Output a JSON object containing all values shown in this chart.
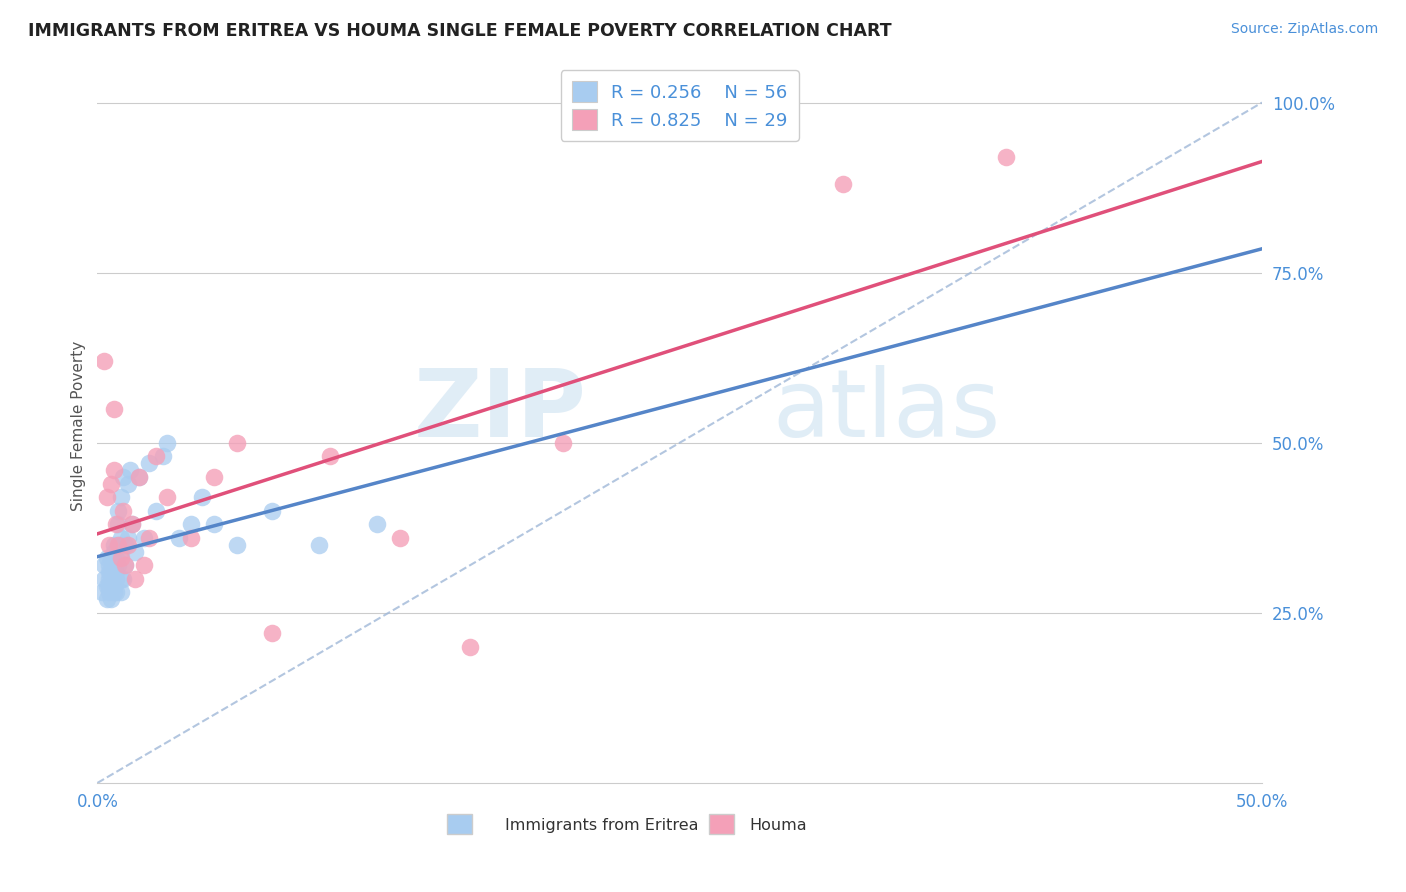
{
  "title": "IMMIGRANTS FROM ERITREA VS HOUMA SINGLE FEMALE POVERTY CORRELATION CHART",
  "source": "Source: ZipAtlas.com",
  "ylabel": "Single Female Poverty",
  "xlim": [
    0.0,
    0.5
  ],
  "ylim": [
    0.0,
    1.05
  ],
  "xticks": [
    0.0,
    0.1,
    0.2,
    0.3,
    0.4,
    0.5
  ],
  "xtick_labels": [
    "0.0%",
    "",
    "",
    "",
    "",
    "50.0%"
  ],
  "ytick_labels": [
    "25.0%",
    "50.0%",
    "75.0%",
    "100.0%"
  ],
  "yticks": [
    0.25,
    0.5,
    0.75,
    1.0
  ],
  "legend_r1": "R = 0.256",
  "legend_n1": "N = 56",
  "legend_r2": "R = 0.825",
  "legend_n2": "N = 29",
  "blue_color": "#a8ccf0",
  "pink_color": "#f4a0b8",
  "blue_line_color": "#5585c8",
  "pink_line_color": "#e0507a",
  "ref_line_color": "#a0b8d8",
  "watermark_zip": "ZIP",
  "watermark_atlas": "atlas",
  "blue_scatter_x": [
    0.002,
    0.003,
    0.003,
    0.004,
    0.004,
    0.004,
    0.005,
    0.005,
    0.005,
    0.005,
    0.005,
    0.006,
    0.006,
    0.006,
    0.006,
    0.007,
    0.007,
    0.007,
    0.007,
    0.007,
    0.008,
    0.008,
    0.008,
    0.008,
    0.009,
    0.009,
    0.009,
    0.009,
    0.01,
    0.01,
    0.01,
    0.01,
    0.01,
    0.011,
    0.011,
    0.012,
    0.012,
    0.013,
    0.013,
    0.014,
    0.015,
    0.016,
    0.018,
    0.02,
    0.022,
    0.025,
    0.028,
    0.03,
    0.035,
    0.04,
    0.045,
    0.05,
    0.06,
    0.075,
    0.095,
    0.12
  ],
  "blue_scatter_y": [
    0.28,
    0.3,
    0.32,
    0.27,
    0.29,
    0.33,
    0.31,
    0.3,
    0.28,
    0.32,
    0.29,
    0.31,
    0.33,
    0.3,
    0.27,
    0.32,
    0.34,
    0.28,
    0.35,
    0.29,
    0.31,
    0.33,
    0.3,
    0.28,
    0.4,
    0.35,
    0.32,
    0.38,
    0.36,
    0.42,
    0.3,
    0.28,
    0.34,
    0.45,
    0.3,
    0.32,
    0.35,
    0.44,
    0.36,
    0.46,
    0.38,
    0.34,
    0.45,
    0.36,
    0.47,
    0.4,
    0.48,
    0.5,
    0.36,
    0.38,
    0.42,
    0.38,
    0.35,
    0.4,
    0.35,
    0.38
  ],
  "pink_scatter_x": [
    0.003,
    0.004,
    0.005,
    0.006,
    0.007,
    0.007,
    0.008,
    0.009,
    0.01,
    0.011,
    0.012,
    0.013,
    0.015,
    0.016,
    0.018,
    0.02,
    0.022,
    0.025,
    0.03,
    0.04,
    0.05,
    0.06,
    0.075,
    0.1,
    0.13,
    0.16,
    0.2,
    0.32,
    0.39
  ],
  "pink_scatter_y": [
    0.62,
    0.42,
    0.35,
    0.44,
    0.46,
    0.55,
    0.38,
    0.35,
    0.33,
    0.4,
    0.32,
    0.35,
    0.38,
    0.3,
    0.45,
    0.32,
    0.36,
    0.48,
    0.42,
    0.36,
    0.45,
    0.5,
    0.22,
    0.48,
    0.36,
    0.2,
    0.5,
    0.88,
    0.92
  ]
}
